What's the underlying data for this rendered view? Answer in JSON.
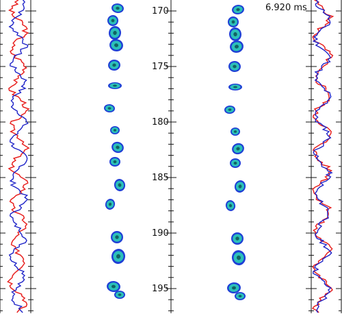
{
  "time_readout": "6.920 ms",
  "axis": {
    "tick_labels": [
      "170",
      "175",
      "180",
      "185",
      "190",
      "195"
    ],
    "tick_values": [
      170,
      175,
      180,
      185,
      190,
      195
    ],
    "range": [
      167,
      197
    ]
  },
  "colors": {
    "profile_red": "#e8211f",
    "profile_blue": "#1d22c8",
    "blob_outer": "#1f3fd6",
    "blob_inner": "#2bc0b9",
    "blob_core": "#0b4a4f"
  }
}
